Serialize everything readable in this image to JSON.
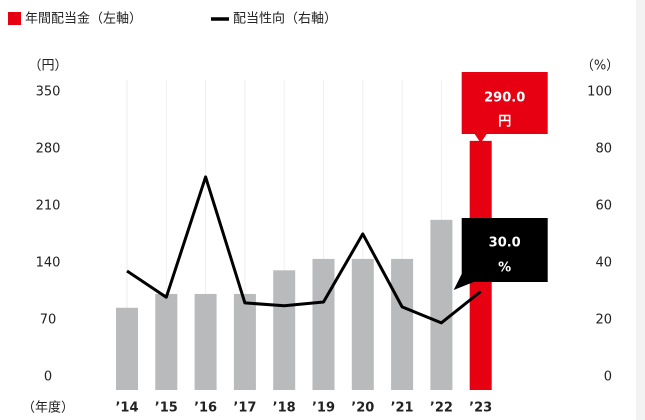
{
  "chart_data": {
    "type": "bar-line",
    "legend": [
      "年間配当金（左軸）",
      "配当性向（右軸）"
    ],
    "y_unit": "（円）",
    "y2_unit": "（%）",
    "x_unit": "（年度）",
    "categories": [
      "’14",
      "’15",
      "’16",
      "’17",
      "’18",
      "’19",
      "’20",
      "’21",
      "’22",
      "’23"
    ],
    "series": [
      {
        "name": "年間配当金（左軸）",
        "type": "bar",
        "color": "#b8babc",
        "highlight_color": "#e60012",
        "values": [
          85,
          102,
          102,
          102,
          131,
          145,
          145,
          145,
          193,
          290
        ],
        "value_labels": [
          null,
          null,
          null,
          null,
          null,
          null,
          null,
          null,
          null,
          "290.0"
        ],
        "label_unit": "円"
      },
      {
        "name": "配当性向（右軸）",
        "type": "line",
        "axis": "y2",
        "color": "#000000",
        "values": [
          37.2,
          28,
          70.2,
          26,
          25,
          26.3,
          50.2,
          24.6,
          19,
          30
        ],
        "value_labels": [
          null,
          null,
          null,
          null,
          null,
          null,
          null,
          null,
          null,
          "30.0"
        ],
        "label_unit": "%"
      }
    ],
    "ylim": [
      0,
      350
    ],
    "yticks": [
      0,
      70,
      140,
      210,
      280,
      350
    ],
    "y2lim": [
      0,
      100
    ],
    "y2ticks": [
      0,
      20,
      40,
      60,
      80,
      100
    ]
  }
}
